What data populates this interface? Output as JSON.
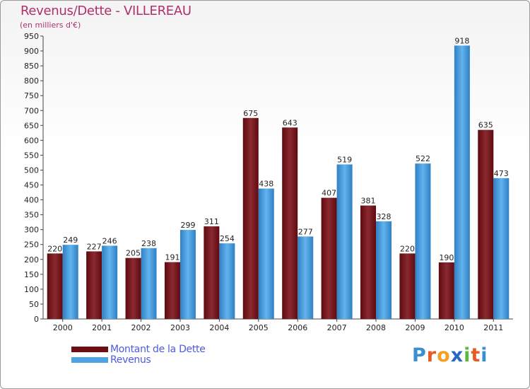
{
  "title": "Revenus/Dette - VILLEREAU",
  "subtitle": "(en milliers d'€)",
  "colors": {
    "dette": "#7a1f24",
    "revenus": "#4ea3e4",
    "title": "#b0306a",
    "legend_text": "#4d5be0"
  },
  "legend": [
    {
      "label": "Montant de la Dette",
      "color": "#6b0f14"
    },
    {
      "label": "Revenus",
      "color": "#4ea3e4"
    }
  ],
  "logo": {
    "letters": [
      "P",
      "r",
      "o",
      "x",
      "i",
      "t",
      "i"
    ],
    "colors": [
      "#3a8fd0",
      "#e85a25",
      "#f4a021",
      "#2a66c8",
      "#5bb83e",
      "#e85a25",
      "#3a8fd0"
    ]
  },
  "chart_data": {
    "type": "bar",
    "categories": [
      "2000",
      "2001",
      "2002",
      "2003",
      "2004",
      "2005",
      "2006",
      "2007",
      "2008",
      "2009",
      "2010",
      "2011"
    ],
    "series": [
      {
        "name": "Montant de la Dette",
        "values": [
          220,
          227,
          205,
          191,
          311,
          675,
          643,
          407,
          381,
          220,
          190,
          635
        ]
      },
      {
        "name": "Revenus",
        "values": [
          249,
          246,
          238,
          299,
          254,
          438,
          277,
          519,
          328,
          522,
          918,
          473
        ]
      }
    ],
    "ylim": [
      0,
      950
    ],
    "yticks": [
      0,
      50,
      100,
      150,
      200,
      250,
      300,
      350,
      400,
      450,
      500,
      550,
      600,
      650,
      700,
      750,
      800,
      850,
      900,
      950
    ],
    "grid": false,
    "legend_position": "bottom-left"
  }
}
